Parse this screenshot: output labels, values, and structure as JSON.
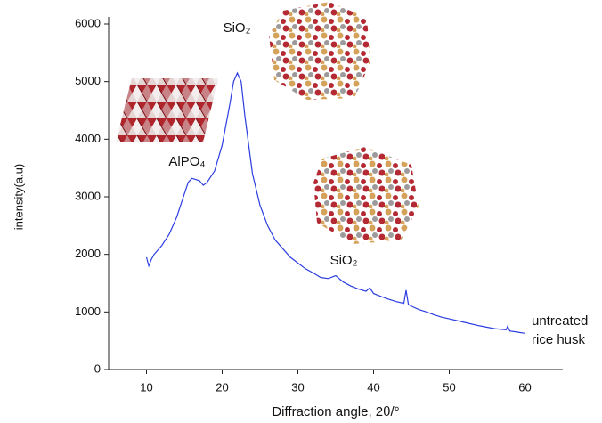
{
  "chart_data": {
    "type": "line",
    "x_label": "Diffraction angle, 2θ/°",
    "y_label": "intensity(a.u)",
    "annotations": [
      "SiO₂",
      "AlPO₄",
      "SiO₂"
    ],
    "xlim": [
      5,
      65
    ],
    "xticks": [
      10,
      20,
      30,
      40,
      50,
      60
    ],
    "ylim": [
      0,
      6000
    ],
    "yticks": [
      0,
      1000,
      2000,
      3000,
      4000,
      5000,
      6000
    ],
    "x": [
      10,
      10.3,
      10.6,
      11,
      12,
      13,
      14,
      15,
      15.5,
      16,
      16.5,
      17,
      17.5,
      18,
      19,
      20,
      21,
      21.5,
      22,
      22.5,
      23,
      24,
      25,
      26,
      27,
      28,
      29,
      30,
      31,
      32,
      33,
      34,
      35,
      36,
      37,
      38,
      39,
      39.5,
      40,
      41,
      42,
      43,
      44,
      44.3,
      44.6,
      45,
      46,
      47,
      48,
      49,
      50,
      52,
      54,
      56,
      57.5,
      57.7,
      58,
      59,
      60
    ],
    "series": [
      {
        "name": "untreated rice husk",
        "color": "#2b3de0",
        "values": [
          1950,
          1800,
          1900,
          2000,
          2150,
          2350,
          2650,
          3050,
          3250,
          3320,
          3300,
          3280,
          3200,
          3250,
          3450,
          3900,
          4600,
          5000,
          5150,
          5000,
          4400,
          3400,
          2850,
          2500,
          2250,
          2100,
          1950,
          1850,
          1750,
          1680,
          1600,
          1580,
          1630,
          1520,
          1450,
          1400,
          1360,
          1420,
          1320,
          1270,
          1220,
          1180,
          1150,
          1380,
          1130,
          1100,
          1040,
          1000,
          950,
          910,
          880,
          820,
          760,
          710,
          690,
          750,
          670,
          650,
          630
        ]
      }
    ]
  }
}
